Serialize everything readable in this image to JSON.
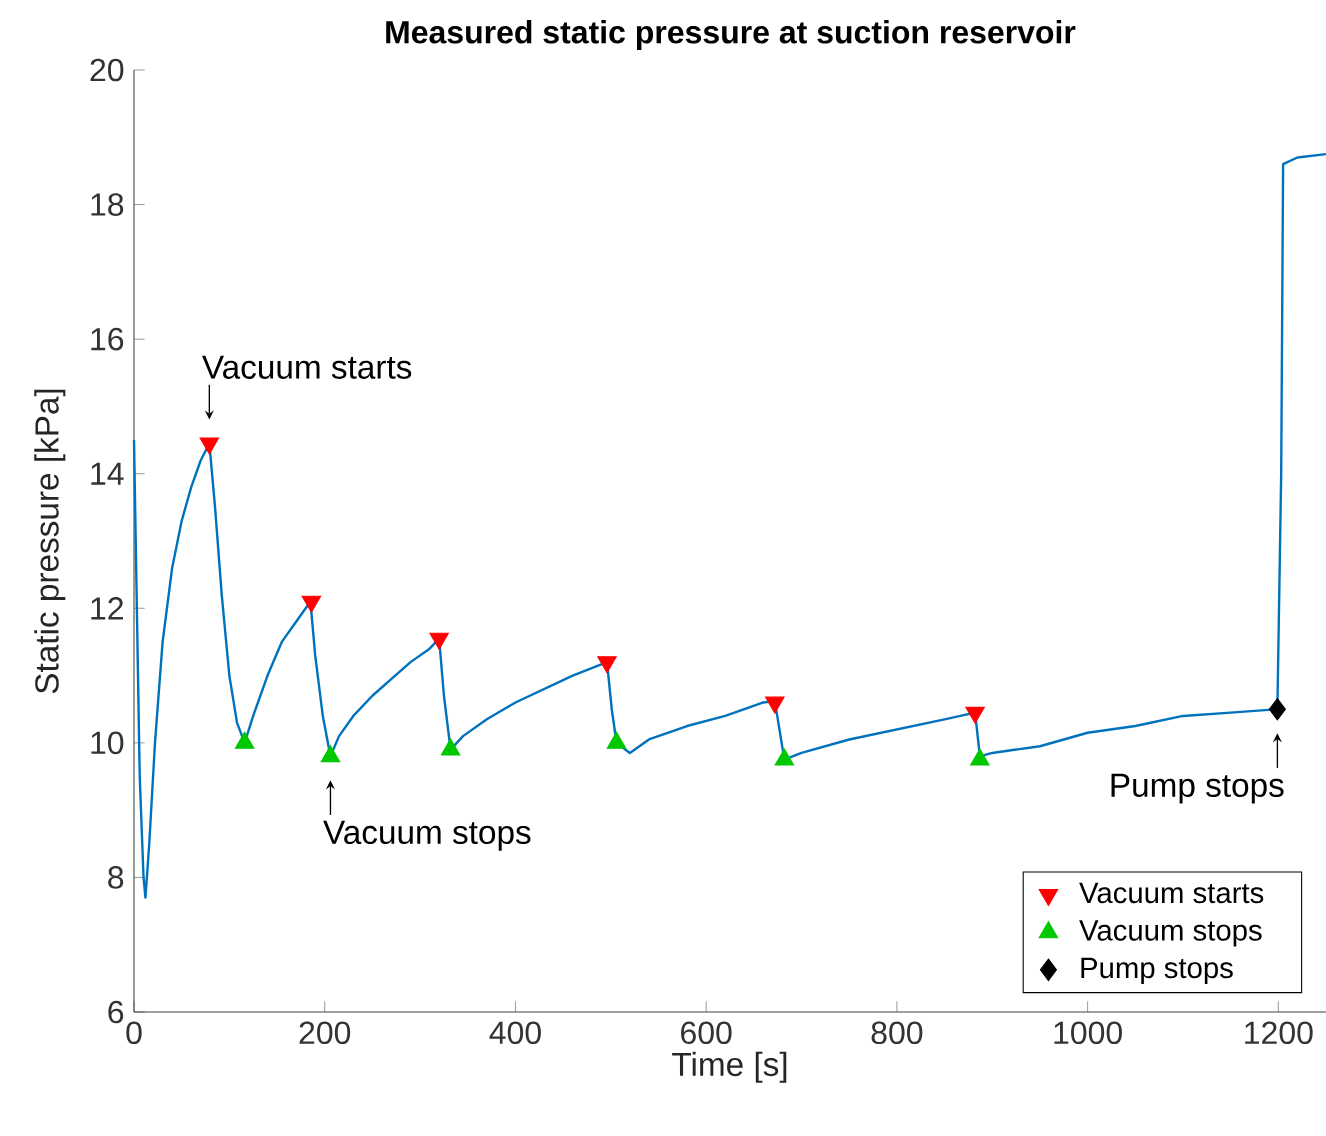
{
  "chart_data": {
    "type": "line",
    "title": "Measured static pressure at suction reservoir",
    "xlabel": "Time [s]",
    "ylabel": "Static pressure [kPa]",
    "xlim": [
      0,
      1250
    ],
    "ylim": [
      6,
      20
    ],
    "xticks": [
      0,
      200,
      400,
      600,
      800,
      1000,
      1200
    ],
    "yticks": [
      6,
      8,
      10,
      12,
      14,
      16,
      18,
      20
    ],
    "legend": "bottom right",
    "series": [
      {
        "color": "#0072bd",
        "x": [
          0,
          3,
          6,
          10,
          12,
          16,
          22,
          30,
          40,
          50,
          60,
          70,
          79,
          85,
          92,
          100,
          108,
          116,
          125,
          140,
          155,
          170,
          185,
          190,
          198,
          206,
          215,
          230,
          250,
          270,
          290,
          310,
          320,
          325,
          332,
          345,
          370,
          400,
          430,
          460,
          496,
          501,
          506,
          520,
          540,
          580,
          620,
          660,
          672,
          682,
          700,
          750,
          800,
          850,
          882,
          887,
          900,
          950,
          1000,
          1050,
          1100,
          1150,
          1199,
          1203,
          1205,
          1220,
          1250
        ],
        "values": [
          14.5,
          12.0,
          9.5,
          8.0,
          7.7,
          8.5,
          10.0,
          11.5,
          12.6,
          13.3,
          13.8,
          14.2,
          14.45,
          13.5,
          12.2,
          11.0,
          10.3,
          10.0,
          10.4,
          11.0,
          11.5,
          11.8,
          12.1,
          11.3,
          10.4,
          9.8,
          10.1,
          10.4,
          10.7,
          10.95,
          11.2,
          11.4,
          11.55,
          10.7,
          9.9,
          10.1,
          10.35,
          10.6,
          10.8,
          11.0,
          11.2,
          10.5,
          10.0,
          9.85,
          10.05,
          10.25,
          10.4,
          10.6,
          10.62,
          9.75,
          9.85,
          10.05,
          10.2,
          10.35,
          10.45,
          9.8,
          9.85,
          9.95,
          10.15,
          10.25,
          10.4,
          10.45,
          10.5,
          14.0,
          18.6,
          18.7,
          18.75
        ]
      },
      {
        "type": "scatter",
        "name": "Vacuum starts",
        "color": "#ff0000",
        "marker": "triangle down",
        "x": [
          79,
          186,
          320,
          496,
          672,
          882
        ],
        "values": [
          14.45,
          12.1,
          11.55,
          11.2,
          10.6,
          10.45
        ]
      },
      {
        "type": "scatter",
        "name": "Vacuum stops",
        "color": "#00c800",
        "marker": "triangle",
        "x": [
          116,
          206,
          332,
          506,
          682,
          887
        ],
        "values": [
          10.0,
          9.8,
          9.9,
          10.0,
          9.75,
          9.75
        ]
      },
      {
        "type": "scatter",
        "name": "Pump stops",
        "color": "#000000",
        "marker": "diamond",
        "x": [
          1199
        ],
        "values": [
          10.5
        ]
      }
    ],
    "annotations": [
      {
        "text": "Vacuum starts",
        "x": 79,
        "y": 14.45
      },
      {
        "text": "Vacuum stops",
        "x": 206,
        "y": 9.8
      },
      {
        "text": "Pump stops",
        "x": 1199,
        "y": 10.5
      }
    ]
  }
}
